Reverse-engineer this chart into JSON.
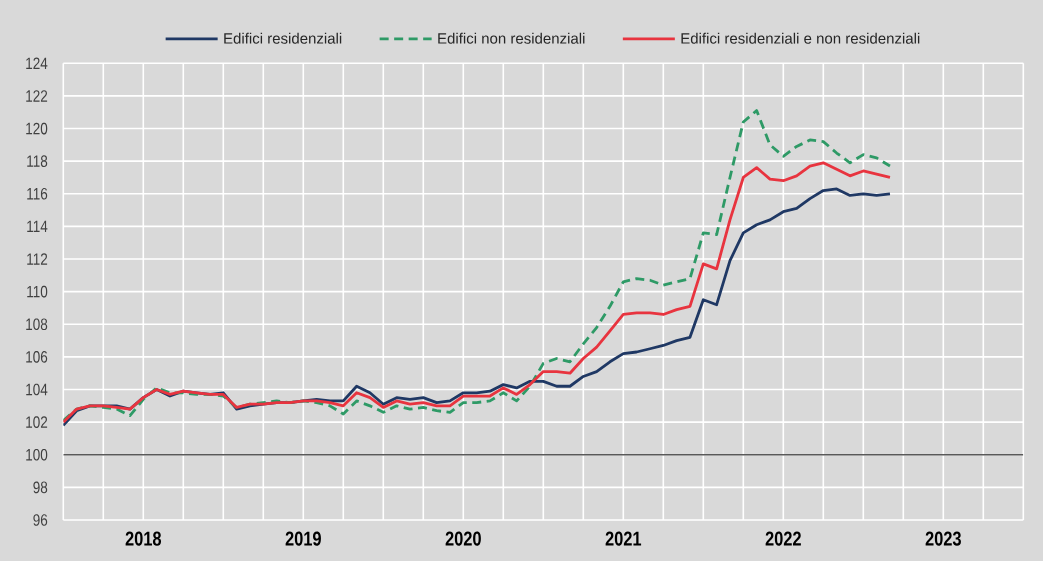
{
  "chart_data": {
    "type": "line",
    "x": [
      "2018-01",
      "2018-02",
      "2018-03",
      "2018-04",
      "2018-05",
      "2018-06",
      "2018-07",
      "2018-08",
      "2018-09",
      "2018-10",
      "2018-11",
      "2018-12",
      "2019-01",
      "2019-02",
      "2019-03",
      "2019-04",
      "2019-05",
      "2019-06",
      "2019-07",
      "2019-08",
      "2019-09",
      "2019-10",
      "2019-11",
      "2019-12",
      "2020-01",
      "2020-02",
      "2020-03",
      "2020-04",
      "2020-05",
      "2020-06",
      "2020-07",
      "2020-08",
      "2020-09",
      "2020-10",
      "2020-11",
      "2020-12",
      "2021-01",
      "2021-02",
      "2021-03",
      "2021-04",
      "2021-05",
      "2021-06",
      "2021-07",
      "2021-08",
      "2021-09",
      "2021-10",
      "2021-11",
      "2021-12",
      "2022-01",
      "2022-02",
      "2022-03",
      "2022-04",
      "2022-05",
      "2022-06",
      "2022-07",
      "2022-08",
      "2022-09",
      "2022-10",
      "2022-11",
      "2022-12",
      "2023-01",
      "2023-02",
      "2023-03"
    ],
    "series": [
      {
        "name": "Edifici residenziali",
        "color": "#1f3864",
        "values": [
          101.8,
          102.7,
          103.0,
          103.0,
          103.0,
          102.8,
          103.5,
          104.0,
          103.6,
          103.9,
          103.8,
          103.7,
          103.8,
          102.8,
          103.0,
          103.1,
          103.2,
          103.2,
          103.3,
          103.4,
          103.3,
          103.3,
          104.2,
          103.8,
          103.1,
          103.5,
          103.4,
          103.5,
          103.2,
          103.3,
          103.8,
          103.8,
          103.9,
          104.3,
          104.1,
          104.5,
          104.5,
          104.2,
          104.2,
          104.8,
          105.1,
          105.7,
          106.2,
          106.3,
          106.5,
          106.7,
          107.0,
          107.2,
          109.5,
          109.2,
          111.9,
          113.6,
          114.1,
          114.4,
          114.9,
          115.1,
          115.7,
          116.2,
          116.3,
          115.9,
          116.0,
          115.9,
          116.0
        ]
      },
      {
        "name": "Edifici non residenziali",
        "color": "#2e9a66",
        "line_style": "dashed",
        "values": [
          102.1,
          102.8,
          103.0,
          102.9,
          102.8,
          102.4,
          103.4,
          104.1,
          103.8,
          103.8,
          103.7,
          103.7,
          103.6,
          102.9,
          103.1,
          103.2,
          103.3,
          103.2,
          103.3,
          103.2,
          103.0,
          102.5,
          103.3,
          103.0,
          102.6,
          103.0,
          102.8,
          102.9,
          102.7,
          102.6,
          103.2,
          103.2,
          103.3,
          103.8,
          103.3,
          104.2,
          105.6,
          105.9,
          105.7,
          106.8,
          107.8,
          109.1,
          110.6,
          110.8,
          110.7,
          110.4,
          110.6,
          110.8,
          113.6,
          113.5,
          117.0,
          120.4,
          121.1,
          119.0,
          118.3,
          118.9,
          119.3,
          119.2,
          118.5,
          117.9,
          118.4,
          118.2,
          117.7
        ]
      },
      {
        "name": "Edifici residenziali e non residenziali",
        "color": "#e8343f",
        "values": [
          102.0,
          102.8,
          103.0,
          103.0,
          102.9,
          102.8,
          103.5,
          104.0,
          103.7,
          103.9,
          103.8,
          103.7,
          103.7,
          102.9,
          103.1,
          103.1,
          103.2,
          103.2,
          103.3,
          103.3,
          103.2,
          103.0,
          103.8,
          103.5,
          102.9,
          103.3,
          103.1,
          103.2,
          103.0,
          103.0,
          103.6,
          103.6,
          103.6,
          104.1,
          103.7,
          104.3,
          105.1,
          105.1,
          105.0,
          105.9,
          106.6,
          107.6,
          108.6,
          108.7,
          108.7,
          108.6,
          108.9,
          109.1,
          111.7,
          111.4,
          114.4,
          117.0,
          117.6,
          116.9,
          116.8,
          117.1,
          117.7,
          117.9,
          117.5,
          117.1,
          117.4,
          117.2,
          117.0
        ]
      }
    ],
    "xlim": [
      "2018-01-01",
      "2024-01-01"
    ],
    "xticks": [
      {
        "value": "2018-01-01",
        "label": null
      },
      {
        "value": "2018-04-01",
        "label": null
      },
      {
        "value": "2018-07-01",
        "label": "2018"
      },
      {
        "value": "2018-10-01",
        "label": null
      },
      {
        "value": "2019-01-01",
        "label": null
      },
      {
        "value": "2019-04-01",
        "label": null
      },
      {
        "value": "2019-07-01",
        "label": "2019"
      },
      {
        "value": "2019-10-01",
        "label": null
      },
      {
        "value": "2020-01-01",
        "label": null
      },
      {
        "value": "2020-04-01",
        "label": null
      },
      {
        "value": "2020-07-01",
        "label": "2020"
      },
      {
        "value": "2020-10-01",
        "label": null
      },
      {
        "value": "2021-01-01",
        "label": null
      },
      {
        "value": "2021-04-01",
        "label": null
      },
      {
        "value": "2021-07-01",
        "label": "2021"
      },
      {
        "value": "2021-10-01",
        "label": null
      },
      {
        "value": "2022-01-01",
        "label": null
      },
      {
        "value": "2022-04-01",
        "label": null
      },
      {
        "value": "2022-07-01",
        "label": "2022"
      },
      {
        "value": "2022-10-01",
        "label": null
      },
      {
        "value": "2023-01-01",
        "label": null
      },
      {
        "value": "2023-04-01",
        "label": null
      },
      {
        "value": "2023-07-01",
        "label": "2023"
      },
      {
        "value": "2023-10-01",
        "label": null
      },
      {
        "value": "2024-01-01",
        "label": null
      }
    ],
    "ylim": [
      96,
      124
    ],
    "yticks": [
      96,
      98,
      100,
      102,
      104,
      106,
      108,
      110,
      112,
      114,
      116,
      118,
      120,
      122,
      124
    ],
    "grid": true,
    "legend": "top",
    "line_style": "solid",
    "ref_lines": [
      {
        "axis": "y",
        "value": 100,
        "color": "#595959"
      }
    ]
  }
}
